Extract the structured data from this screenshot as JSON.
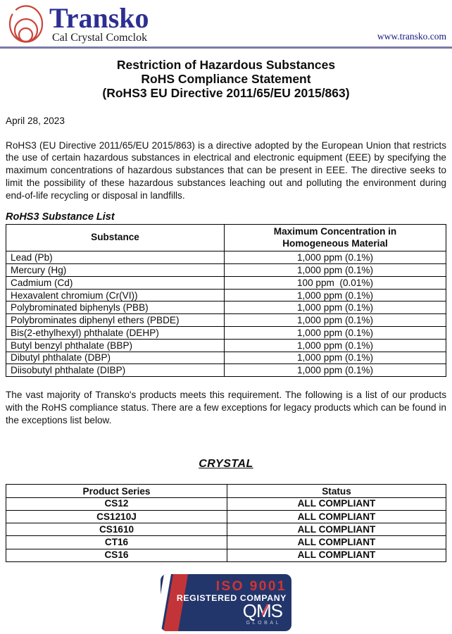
{
  "header": {
    "logo": {
      "brand": "Transko",
      "tagline": "Cal Crystal Comclok",
      "brand_color": "#2d2f92",
      "icon_color": "#c9453a"
    },
    "website": "www.transko.com",
    "rule_color": "#7a7aa8"
  },
  "title": {
    "line1": "Restriction of Hazardous Substances",
    "line2": "RoHS Compliance Statement",
    "line3": "(RoHS3 EU Directive 2011/65/EU 2015/863)"
  },
  "date": "April 28, 2023",
  "intro_paragraph": "RoHS3 (EU Directive 2011/65/EU 2015/863) is a directive adopted by the European Union that restricts the use of certain hazardous substances in electrical and electronic equipment (EEE) by specifying the maximum concentrations of hazardous substances that can be present in EEE.  The directive seeks to limit the possibility of these hazardous substances leaching out and polluting the environment during end-of-life recycling or disposal in landfills.",
  "substance_list": {
    "heading": "RoHS3 Substance List",
    "columns": [
      "Substance",
      "Maximum Concentration in\nHomogeneous Material"
    ],
    "rows": [
      [
        "Lead (Pb)",
        "1,000 ppm (0.1%)"
      ],
      [
        "Mercury (Hg)",
        "1,000 ppm (0.1%)"
      ],
      [
        "Cadmium (Cd)",
        "100 ppm  (0.01%)"
      ],
      [
        "Hexavalent chromium (Cr(VI))",
        "1,000 ppm (0.1%)"
      ],
      [
        "Polybrominated biphenyls (PBB)",
        "1,000 ppm (0.1%)"
      ],
      [
        "Polybrominates diphenyl ethers (PBDE)",
        "1,000 ppm (0.1%)"
      ],
      [
        "Bis(2-ethylhexyl) phthalate (DEHP)",
        "1,000 ppm (0.1%)"
      ],
      [
        "Butyl benzyl phthalate (BBP)",
        "1,000 ppm (0.1%)"
      ],
      [
        "Dibutyl phthalate (DBP)",
        "1,000 ppm (0.1%)"
      ],
      [
        "Diisobutyl phthalate (DIBP)",
        "1,000 ppm (0.1%)"
      ]
    ]
  },
  "body_paragraph": "The vast majority of Transko's products meets this requirement.  The following is a list of our products with the RoHS compliance status.  There are a few exceptions for legacy products which can be found in the exceptions list below.",
  "crystal_section": {
    "heading": "CRYSTAL",
    "columns": [
      "Product Series",
      "Status"
    ],
    "rows": [
      [
        "CS12",
        "ALL COMPLIANT"
      ],
      [
        "CS1210J",
        "ALL COMPLIANT"
      ],
      [
        "CS1610",
        "ALL COMPLIANT"
      ],
      [
        "CT16",
        "ALL COMPLIANT"
      ],
      [
        "CS16",
        "ALL COMPLIANT"
      ]
    ]
  },
  "badge": {
    "iso_label": "ISO 9001",
    "registered_label": "REGISTERED COMPANY",
    "qms_label": "QMS",
    "global_label": "GLOBAL",
    "navy_color": "#23366b",
    "red_color": "#d03434"
  }
}
